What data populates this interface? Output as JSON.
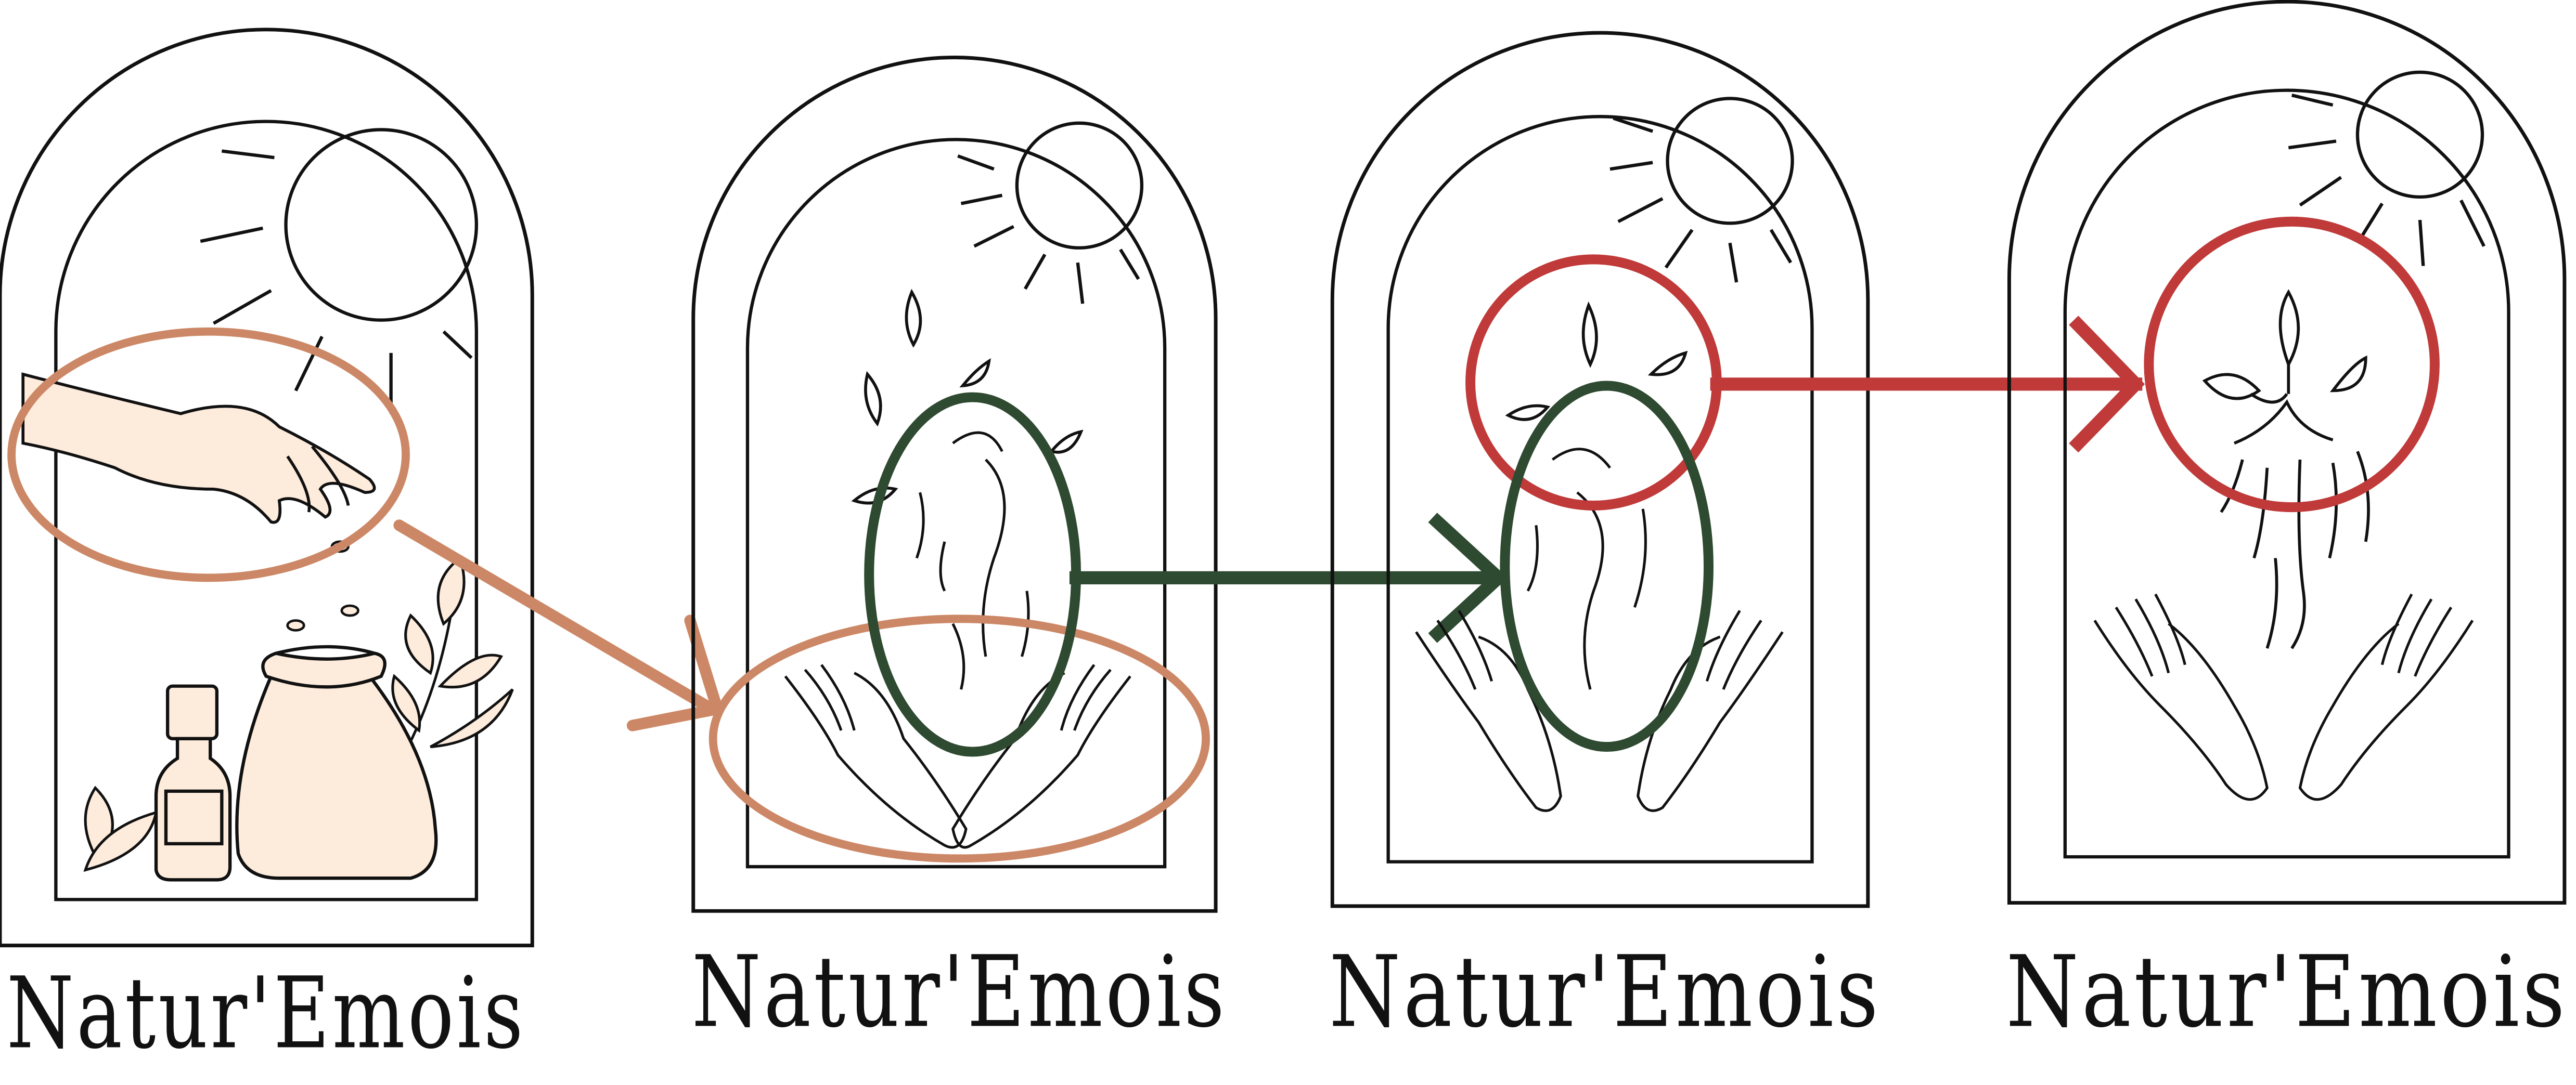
{
  "panels": [
    {
      "brand": "Natur'Emois"
    },
    {
      "brand": "Natur'Emois"
    },
    {
      "brand": "Natur'Emois"
    },
    {
      "brand": "Natur'Emois"
    }
  ],
  "colors": {
    "line": "#111111",
    "accent_orange": "#cc8866",
    "accent_green": "#2e4a30",
    "accent_red": "#c03a3a",
    "fill_peach": "#fdebdc"
  },
  "icons": [
    "sun-icon",
    "hand-icon",
    "seed-bag-icon",
    "bottle-icon",
    "leaf-icon",
    "open-hands-icon",
    "seed-icon",
    "sprout-icon"
  ]
}
